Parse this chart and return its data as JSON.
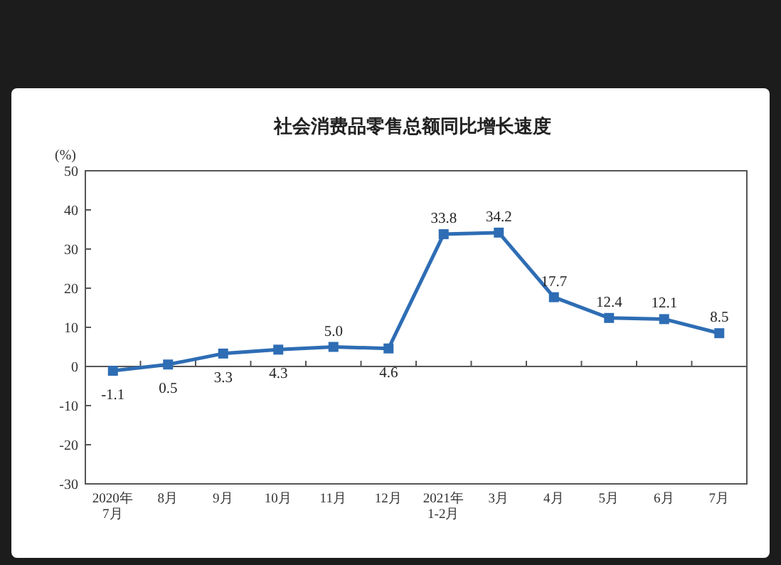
{
  "chart_data": {
    "type": "line",
    "title": "社会消费品零售总额同比增长速度",
    "ylabel": "(%)",
    "categories": [
      "2020年\n7月",
      "8月",
      "9月",
      "10月",
      "11月",
      "12月",
      "2021年\n1-2月",
      "3月",
      "4月",
      "5月",
      "6月",
      "7月"
    ],
    "series": [
      {
        "color": "#2e6db4",
        "values": [
          -1.1,
          0.5,
          3.3,
          4.3,
          5.0,
          4.6,
          33.8,
          34.2,
          17.7,
          12.4,
          12.1,
          8.5
        ],
        "value_labels": [
          "-1.1",
          "0.5",
          "3.3",
          "4.3",
          "5.0",
          "4.6",
          "33.8",
          "34.2",
          "17.7",
          "12.4",
          "12.1",
          "8.5"
        ]
      }
    ],
    "ylim": [
      -30,
      50
    ],
    "yticks": [
      -30,
      -20,
      -10,
      0,
      10,
      20,
      30,
      40,
      50
    ],
    "marker": "square",
    "line_style": "solid",
    "ref_lines": [
      {
        "axis": "y",
        "value": 0,
        "color": "#555555"
      }
    ]
  }
}
